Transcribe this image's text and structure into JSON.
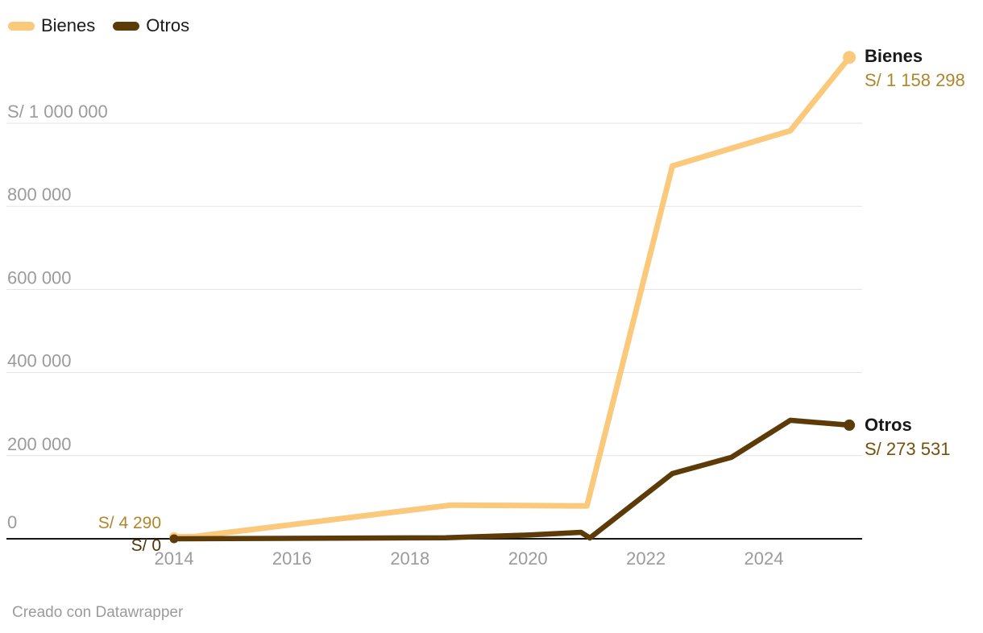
{
  "legend": {
    "items": [
      {
        "label": "Bienes",
        "color": "#FAC97C"
      },
      {
        "label": "Otros",
        "color": "#5C3B08"
      }
    ]
  },
  "series_end_labels": {
    "bienes": {
      "name": "Bienes",
      "value": "S/ 1 158 298"
    },
    "otros": {
      "name": "Otros",
      "value": "S/ 273 531"
    }
  },
  "series_start_labels": {
    "bienes": "S/ 4 290",
    "otros": "S/ 0"
  },
  "footer": {
    "credit": "Creado con Datawrapper"
  },
  "colors": {
    "bienes_line": "#FAC97C",
    "otros_line": "#5C3B08",
    "bienes_value_text": "#B1862B",
    "otros_value_text": "#74510C",
    "start_otros_text": "#503608",
    "axis_tick_text": "#9B9B9B",
    "gridline": "#E3E3E3",
    "axis_line": "#161616",
    "end_name_text": "#191919"
  },
  "chart_data": {
    "type": "line",
    "title": "",
    "currency_prefix": "S/",
    "x_ticks": [
      2014,
      2016,
      2018,
      2020,
      2022,
      2024
    ],
    "y_ticks": [
      {
        "value": 0,
        "label": "0"
      },
      {
        "value": 200000,
        "label": "200 000"
      },
      {
        "value": 400000,
        "label": "400 000"
      },
      {
        "value": 600000,
        "label": "600 000"
      },
      {
        "value": 800000,
        "label": "800 000"
      },
      {
        "value": 1000000,
        "label": "S/ 1 000 000"
      }
    ],
    "xlim": [
      2013.6,
      2026
    ],
    "ylim": [
      0,
      1200000
    ],
    "grid": "horizontal-only",
    "legend_position": "top-left",
    "series": [
      {
        "name": "Bienes",
        "color": "#FAC97C",
        "first_value": 4290,
        "last_value": 1158298,
        "points": [
          {
            "x": 2014.0,
            "y": 4290
          },
          {
            "x": 2014.35,
            "y": 5500
          },
          {
            "x": 2018.7,
            "y": 81000
          },
          {
            "x": 2021.0,
            "y": 79000
          },
          {
            "x": 2022.45,
            "y": 897000
          },
          {
            "x": 2024.45,
            "y": 982000
          },
          {
            "x": 2025.45,
            "y": 1158298
          }
        ]
      },
      {
        "name": "Otros",
        "color": "#5C3B08",
        "first_value": 0,
        "last_value": 273531,
        "points": [
          {
            "x": 2014.0,
            "y": 0
          },
          {
            "x": 2018.6,
            "y": 2500
          },
          {
            "x": 2020.0,
            "y": 9000
          },
          {
            "x": 2020.9,
            "y": 15500
          },
          {
            "x": 2021.05,
            "y": 2000
          },
          {
            "x": 2022.45,
            "y": 157000
          },
          {
            "x": 2023.45,
            "y": 196000
          },
          {
            "x": 2024.45,
            "y": 285000
          },
          {
            "x": 2025.45,
            "y": 273531
          }
        ]
      }
    ]
  }
}
